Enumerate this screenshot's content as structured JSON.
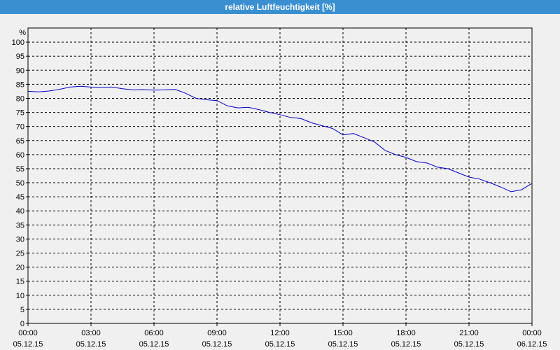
{
  "window": {
    "title": "relative Luftfeuchtigkeit [%]"
  },
  "chart_data": {
    "type": "line",
    "title": "relative Luftfeuchtigkeit [%]",
    "ylabel": "%",
    "xlabel": "",
    "ylim": [
      0,
      105
    ],
    "y_ticks": [
      0,
      5,
      10,
      15,
      20,
      25,
      30,
      35,
      40,
      45,
      50,
      55,
      60,
      65,
      70,
      75,
      80,
      85,
      90,
      95,
      100
    ],
    "x_ticks": [
      {
        "time": "00:00",
        "date": "05.12.15"
      },
      {
        "time": "03:00",
        "date": "05.12.15"
      },
      {
        "time": "06:00",
        "date": "05.12.15"
      },
      {
        "time": "09:00",
        "date": "05.12.15"
      },
      {
        "time": "12:00",
        "date": "05.12.15"
      },
      {
        "time": "15:00",
        "date": "05.12.15"
      },
      {
        "time": "18:00",
        "date": "05.12.15"
      },
      {
        "time": "21:00",
        "date": "05.12.15"
      },
      {
        "time": "00:00",
        "date": "06.12.15"
      }
    ],
    "grid": true,
    "series_color": "#0000cc",
    "series": [
      {
        "x": [
          "05.12.15 00:00",
          "05.12.15 00:30",
          "05.12.15 01:00",
          "05.12.15 01:30",
          "05.12.15 02:00",
          "05.12.15 02:30",
          "05.12.15 03:00",
          "05.12.15 03:30",
          "05.12.15 04:00",
          "05.12.15 04:30",
          "05.12.15 05:00",
          "05.12.15 05:30",
          "05.12.15 06:00",
          "05.12.15 06:30",
          "05.12.15 07:00",
          "05.12.15 07:30",
          "05.12.15 08:00",
          "05.12.15 08:30",
          "05.12.15 09:00",
          "05.12.15 09:30",
          "05.12.15 10:00",
          "05.12.15 10:30",
          "05.12.15 11:00",
          "05.12.15 11:30",
          "05.12.15 12:00",
          "05.12.15 12:30",
          "05.12.15 13:00",
          "05.12.15 13:30",
          "05.12.15 14:00",
          "05.12.15 14:30",
          "05.12.15 15:00",
          "05.12.15 15:30",
          "05.12.15 16:00",
          "05.12.15 16:30",
          "05.12.15 17:00",
          "05.12.15 17:30",
          "05.12.15 18:00",
          "05.12.15 18:30",
          "05.12.15 19:00",
          "05.12.15 19:30",
          "05.12.15 20:00",
          "05.12.15 20:30",
          "05.12.15 21:00",
          "05.12.15 21:30",
          "05.12.15 22:00",
          "05.12.15 22:30",
          "05.12.15 23:00",
          "05.12.15 23:30",
          "06.12.15 00:00"
        ],
        "values": [
          82.5,
          82.3,
          82.6,
          83.2,
          84.0,
          84.3,
          84.0,
          83.9,
          84.0,
          83.4,
          83.0,
          83.1,
          82.9,
          83.0,
          83.2,
          81.8,
          80.0,
          79.5,
          79.2,
          77.3,
          76.6,
          76.8,
          76.0,
          75.0,
          74.2,
          73.2,
          72.8,
          71.3,
          70.3,
          69.3,
          67.0,
          67.5,
          66.0,
          64.5,
          61.5,
          60.0,
          59.0,
          57.5,
          57.0,
          55.5,
          55.0,
          53.5,
          52.0,
          51.3,
          50.0,
          48.5,
          46.8,
          47.5,
          49.8
        ]
      }
    ]
  }
}
